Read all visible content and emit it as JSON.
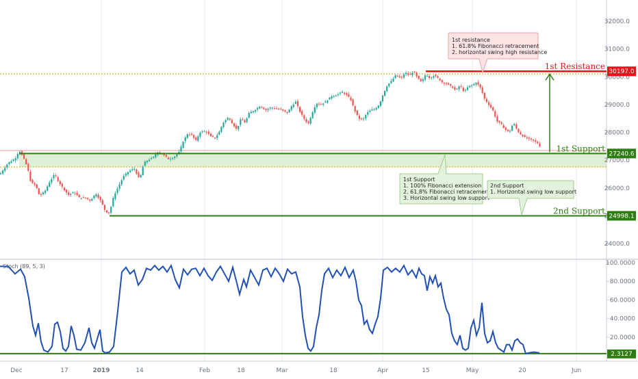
{
  "chart_data": [
    {
      "type": "candlestick",
      "title": "",
      "xlabel": "",
      "ylabel": "",
      "ylim": [
        23500,
        32500
      ],
      "y_ticks": [
        "32000.0",
        "31000.0",
        "30000.0",
        "29000.0",
        "28000.0",
        "27000.0",
        "26000.0",
        "25000.0",
        "24000.0"
      ],
      "x_ticks": [
        "Dec",
        "17",
        "2019",
        "14",
        "Feb",
        "18",
        "Mar",
        "18",
        "Apr",
        "15",
        "May",
        "20",
        "Jun"
      ],
      "close_path": [
        [
          0,
          26500
        ],
        [
          12,
          26900
        ],
        [
          22,
          27050
        ],
        [
          28,
          27350
        ],
        [
          34,
          27100
        ],
        [
          40,
          26750
        ],
        [
          45,
          26200
        ],
        [
          52,
          26100
        ],
        [
          58,
          25700
        ],
        [
          66,
          25900
        ],
        [
          72,
          26200
        ],
        [
          80,
          26500
        ],
        [
          86,
          26200
        ],
        [
          92,
          26000
        ],
        [
          100,
          25750
        ],
        [
          108,
          25850
        ],
        [
          116,
          25650
        ],
        [
          124,
          25650
        ],
        [
          132,
          25550
        ],
        [
          140,
          25800
        ],
        [
          148,
          25500
        ],
        [
          154,
          25150
        ],
        [
          160,
          25100
        ],
        [
          166,
          25700
        ],
        [
          172,
          26000
        ],
        [
          180,
          26400
        ],
        [
          188,
          26600
        ],
        [
          196,
          26700
        ],
        [
          204,
          26300
        ],
        [
          210,
          26900
        ],
        [
          216,
          27000
        ],
        [
          224,
          27100
        ],
        [
          230,
          27300
        ],
        [
          238,
          27200
        ],
        [
          246,
          27050
        ],
        [
          254,
          27100
        ],
        [
          262,
          27300
        ],
        [
          268,
          27700
        ],
        [
          274,
          27950
        ],
        [
          280,
          27900
        ],
        [
          286,
          27700
        ],
        [
          292,
          28000
        ],
        [
          300,
          28050
        ],
        [
          308,
          27850
        ],
        [
          314,
          27800
        ],
        [
          320,
          28000
        ],
        [
          326,
          28350
        ],
        [
          334,
          28550
        ],
        [
          340,
          28300
        ],
        [
          346,
          28100
        ],
        [
          352,
          28500
        ],
        [
          358,
          28350
        ],
        [
          364,
          28700
        ],
        [
          372,
          28800
        ],
        [
          380,
          28950
        ],
        [
          388,
          28800
        ],
        [
          396,
          28900
        ],
        [
          404,
          28850
        ],
        [
          412,
          28800
        ],
        [
          420,
          28700
        ],
        [
          426,
          28950
        ],
        [
          432,
          29100
        ],
        [
          438,
          28750
        ],
        [
          444,
          28500
        ],
        [
          450,
          28300
        ],
        [
          456,
          28700
        ],
        [
          462,
          29050
        ],
        [
          468,
          29000
        ],
        [
          476,
          29100
        ],
        [
          484,
          29300
        ],
        [
          492,
          29350
        ],
        [
          500,
          29450
        ],
        [
          506,
          29350
        ],
        [
          512,
          29200
        ],
        [
          518,
          28800
        ],
        [
          524,
          28500
        ],
        [
          530,
          28450
        ],
        [
          536,
          28700
        ],
        [
          542,
          28800
        ],
        [
          548,
          28850
        ],
        [
          554,
          29000
        ],
        [
          560,
          29400
        ],
        [
          566,
          29700
        ],
        [
          572,
          29850
        ],
        [
          578,
          30050
        ],
        [
          586,
          29950
        ],
        [
          592,
          30150
        ],
        [
          598,
          30050
        ],
        [
          604,
          30200
        ],
        [
          610,
          29950
        ],
        [
          616,
          29800
        ],
        [
          622,
          30100
        ],
        [
          628,
          29950
        ],
        [
          634,
          30050
        ],
        [
          640,
          29950
        ],
        [
          646,
          29800
        ],
        [
          652,
          29750
        ],
        [
          660,
          29650
        ],
        [
          666,
          29500
        ],
        [
          672,
          29700
        ],
        [
          678,
          29450
        ],
        [
          684,
          29650
        ],
        [
          690,
          29700
        ],
        [
          696,
          29800
        ],
        [
          702,
          29600
        ],
        [
          708,
          29200
        ],
        [
          714,
          29000
        ],
        [
          720,
          28800
        ],
        [
          726,
          28400
        ],
        [
          732,
          28300
        ],
        [
          738,
          28100
        ],
        [
          744,
          28000
        ],
        [
          750,
          28350
        ],
        [
          756,
          28050
        ],
        [
          762,
          27900
        ],
        [
          768,
          27800
        ],
        [
          774,
          27750
        ],
        [
          780,
          27700
        ],
        [
          786,
          27600
        ],
        [
          790,
          27450
        ]
      ],
      "levels": [
        {
          "label": "1st Resistance",
          "value": 30197.0,
          "price_tag": "30197.0",
          "color": "#e5141b"
        },
        {
          "label": "1st Support",
          "value": 27240.6,
          "price_tag": "27240.6",
          "color": "#2e7d12"
        },
        {
          "label": "2nd Support",
          "value": 24998.1,
          "price_tag": "24998.1",
          "color": "#2e7d12"
        }
      ],
      "support_zone": [
        26750,
        27240.6
      ],
      "annotations": {
        "resistance": [
          "1st resistance",
          "1. 61.8% Fibonacci retracement",
          "2. horizontal swing high resistance"
        ],
        "support1": [
          "1st Support",
          "1. 100% Fibonacci extension",
          "2. 61.8% Fibonacci retracement",
          "3. Horizontal swing low support"
        ],
        "support2": [
          "2nd Support",
          "1.  Horizontal swing low support"
        ]
      },
      "colors": {
        "up": "#26a69a",
        "down": "#ef5350",
        "resistance": "#e5141b",
        "support": "#2e7d12",
        "zone": "#d9ecd0"
      }
    },
    {
      "type": "line",
      "title": "Stoch (89, 5, 3)",
      "ylim": [
        0,
        100
      ],
      "y_ticks": [
        "100.0000",
        "80.0000",
        "60.0000",
        "40.0000",
        "20.0000"
      ],
      "last_value": "2.3127",
      "reference_level": 2.3127,
      "values": [
        [
          0,
          96
        ],
        [
          12,
          96
        ],
        [
          22,
          88
        ],
        [
          30,
          93
        ],
        [
          36,
          85
        ],
        [
          42,
          62
        ],
        [
          48,
          32
        ],
        [
          52,
          22
        ],
        [
          56,
          35
        ],
        [
          60,
          15
        ],
        [
          64,
          6
        ],
        [
          70,
          4
        ],
        [
          76,
          10
        ],
        [
          80,
          34
        ],
        [
          84,
          36
        ],
        [
          88,
          26
        ],
        [
          92,
          8
        ],
        [
          96,
          5
        ],
        [
          100,
          10
        ],
        [
          104,
          32
        ],
        [
          108,
          22
        ],
        [
          112,
          7
        ],
        [
          118,
          6
        ],
        [
          124,
          14
        ],
        [
          130,
          30
        ],
        [
          134,
          14
        ],
        [
          138,
          8
        ],
        [
          142,
          18
        ],
        [
          146,
          28
        ],
        [
          150,
          5
        ],
        [
          154,
          3
        ],
        [
          160,
          4
        ],
        [
          166,
          10
        ],
        [
          172,
          48
        ],
        [
          178,
          90
        ],
        [
          184,
          95
        ],
        [
          190,
          88
        ],
        [
          196,
          92
        ],
        [
          202,
          76
        ],
        [
          208,
          82
        ],
        [
          214,
          94
        ],
        [
          220,
          92
        ],
        [
          226,
          97
        ],
        [
          232,
          92
        ],
        [
          238,
          96
        ],
        [
          244,
          90
        ],
        [
          250,
          97
        ],
        [
          256,
          82
        ],
        [
          262,
          73
        ],
        [
          268,
          93
        ],
        [
          274,
          87
        ],
        [
          280,
          93
        ],
        [
          286,
          94
        ],
        [
          292,
          86
        ],
        [
          298,
          94
        ],
        [
          304,
          86
        ],
        [
          310,
          81
        ],
        [
          316,
          90
        ],
        [
          322,
          96
        ],
        [
          328,
          88
        ],
        [
          334,
          80
        ],
        [
          340,
          95
        ],
        [
          346,
          78
        ],
        [
          350,
          66
        ],
        [
          356,
          82
        ],
        [
          360,
          74
        ],
        [
          366,
          92
        ],
        [
          372,
          84
        ],
        [
          378,
          76
        ],
        [
          384,
          92
        ],
        [
          390,
          94
        ],
        [
          396,
          85
        ],
        [
          402,
          94
        ],
        [
          408,
          88
        ],
        [
          414,
          80
        ],
        [
          420,
          93
        ],
        [
          426,
          88
        ],
        [
          432,
          90
        ],
        [
          438,
          74
        ],
        [
          442,
          42
        ],
        [
          446,
          22
        ],
        [
          450,
          8
        ],
        [
          454,
          5
        ],
        [
          458,
          10
        ],
        [
          462,
          30
        ],
        [
          466,
          44
        ],
        [
          470,
          70
        ],
        [
          474,
          88
        ],
        [
          480,
          94
        ],
        [
          486,
          84
        ],
        [
          492,
          92
        ],
        [
          498,
          86
        ],
        [
          504,
          95
        ],
        [
          510,
          84
        ],
        [
          516,
          92
        ],
        [
          520,
          80
        ],
        [
          524,
          60
        ],
        [
          528,
          54
        ],
        [
          532,
          34
        ],
        [
          536,
          38
        ],
        [
          540,
          28
        ],
        [
          544,
          24
        ],
        [
          548,
          34
        ],
        [
          552,
          42
        ],
        [
          556,
          62
        ],
        [
          560,
          92
        ],
        [
          566,
          95
        ],
        [
          572,
          90
        ],
        [
          578,
          94
        ],
        [
          584,
          90
        ],
        [
          590,
          97
        ],
        [
          596,
          87
        ],
        [
          602,
          92
        ],
        [
          608,
          84
        ],
        [
          612,
          94
        ],
        [
          616,
          88
        ],
        [
          620,
          86
        ],
        [
          624,
          70
        ],
        [
          628,
          85
        ],
        [
          632,
          78
        ],
        [
          636,
          86
        ],
        [
          640,
          74
        ],
        [
          644,
          78
        ],
        [
          648,
          62
        ],
        [
          652,
          50
        ],
        [
          656,
          44
        ],
        [
          660,
          24
        ],
        [
          664,
          16
        ],
        [
          668,
          12
        ],
        [
          672,
          22
        ],
        [
          676,
          8
        ],
        [
          680,
          6
        ],
        [
          684,
          8
        ],
        [
          688,
          30
        ],
        [
          692,
          38
        ],
        [
          696,
          22
        ],
        [
          700,
          30
        ],
        [
          704,
          57
        ],
        [
          708,
          24
        ],
        [
          712,
          14
        ],
        [
          716,
          16
        ],
        [
          720,
          26
        ],
        [
          724,
          14
        ],
        [
          728,
          8
        ],
        [
          732,
          6
        ],
        [
          736,
          4
        ],
        [
          740,
          12
        ],
        [
          744,
          12
        ],
        [
          748,
          6
        ],
        [
          752,
          16
        ],
        [
          756,
          18
        ],
        [
          760,
          14
        ],
        [
          764,
          12
        ],
        [
          768,
          2.3
        ],
        [
          772,
          3
        ],
        [
          780,
          4
        ],
        [
          788,
          3
        ]
      ],
      "color": "#1f4fb5"
    }
  ]
}
